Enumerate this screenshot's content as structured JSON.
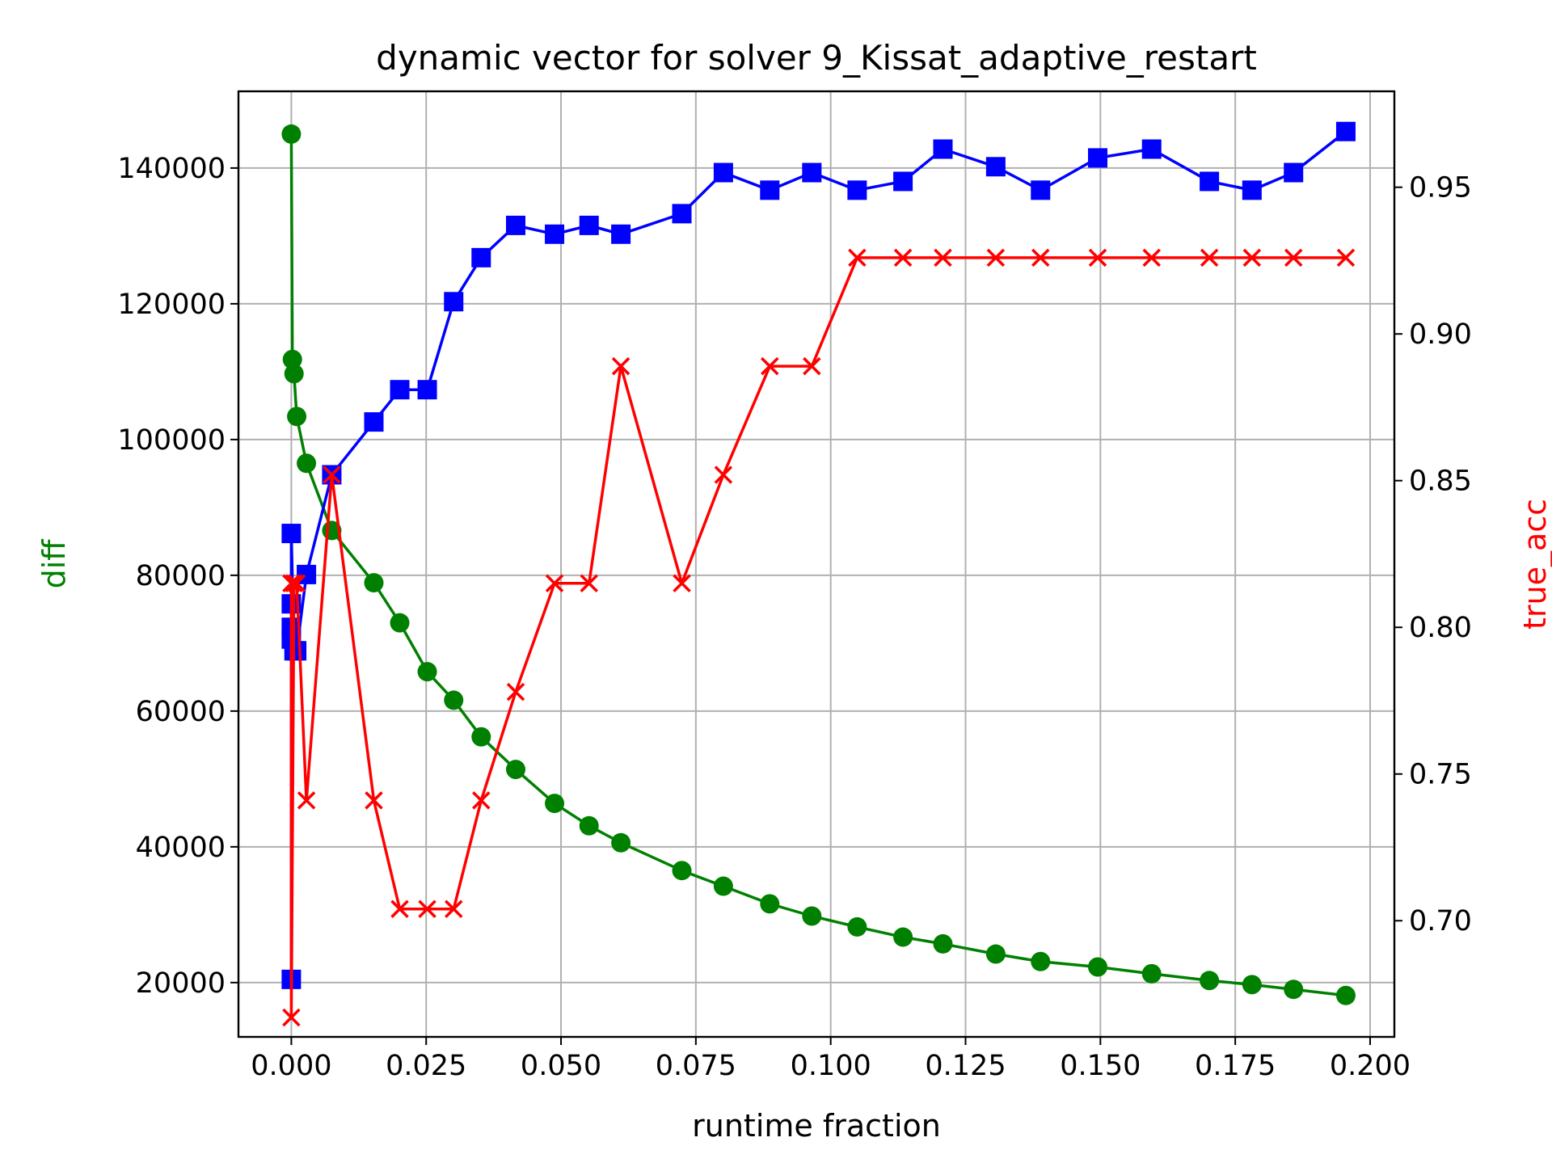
{
  "chart_data": {
    "type": "line",
    "title": "dynamic vector for solver 9_Kissat_adaptive_restart",
    "xlabel": "runtime fraction",
    "ylabel_left": "diff",
    "ylabel_right": "true_acc",
    "xlim": [
      -0.0098,
      0.2045
    ],
    "ylim_left": [
      12000,
      151300
    ],
    "ylim_right": [
      0.6604,
      0.9827
    ],
    "grid": true,
    "x_ticks": [
      "0.000",
      "0.025",
      "0.050",
      "0.075",
      "0.100",
      "0.125",
      "0.150",
      "0.175",
      "0.200"
    ],
    "y_ticks_left": [
      "20000",
      "40000",
      "60000",
      "80000",
      "100000",
      "120000",
      "140000"
    ],
    "y_ticks_right": [
      "0.70",
      "0.75",
      "0.80",
      "0.85",
      "0.90",
      "0.95"
    ],
    "colors": {
      "diff": "#008000",
      "blue": "#0000ff",
      "true_acc": "#ff0000",
      "grid": "#b0b0b0"
    },
    "series": [
      {
        "axis": "left",
        "marker": "circle",
        "color": "#008000",
        "x": [
          0.0,
          0.0002,
          0.0005,
          0.001,
          0.0028,
          0.0075,
          0.0153,
          0.0201,
          0.0252,
          0.0301,
          0.0352,
          0.0416,
          0.0488,
          0.0552,
          0.0611,
          0.0724,
          0.0801,
          0.0887,
          0.0965,
          0.1049,
          0.1134,
          0.1208,
          0.1306,
          0.1389,
          0.1495,
          0.1595,
          0.1702,
          0.1781,
          0.1858,
          0.1955
        ],
        "y": [
          145000,
          111800,
          109700,
          103400,
          96500,
          86600,
          78900,
          73000,
          65800,
          61600,
          56200,
          51400,
          46400,
          43100,
          40600,
          36500,
          34200,
          31600,
          29800,
          28200,
          26700,
          25700,
          24200,
          23100,
          22300,
          21300,
          20300,
          19700,
          19000,
          18100
        ]
      },
      {
        "axis": "right",
        "marker": "square",
        "color": "#0000ff",
        "x": [
          0.0,
          0.0,
          0.0,
          0.0,
          0.0,
          0.0005,
          0.001,
          0.0028,
          0.0075,
          0.0153,
          0.0201,
          0.0252,
          0.0301,
          0.0352,
          0.0416,
          0.0488,
          0.0552,
          0.0611,
          0.0724,
          0.0801,
          0.0887,
          0.0965,
          0.1049,
          0.1134,
          0.1208,
          0.1306,
          0.1389,
          0.1495,
          0.1595,
          0.1702,
          0.1781,
          0.1858,
          0.1955
        ],
        "y": [
          0.68,
          0.808,
          0.8,
          0.796,
          0.832,
          0.792,
          0.792,
          0.818,
          0.852,
          0.87,
          0.881,
          0.881,
          0.911,
          0.926,
          0.937,
          0.934,
          0.937,
          0.934,
          0.941,
          0.955,
          0.949,
          0.955,
          0.949,
          0.952,
          0.963,
          0.957,
          0.949,
          0.96,
          0.963,
          0.952,
          0.949,
          0.955,
          0.969
        ]
      },
      {
        "axis": "right",
        "marker": "x",
        "color": "#ff0000",
        "x": [
          0.0,
          0.0,
          0.0005,
          0.001,
          0.0028,
          0.0075,
          0.0153,
          0.0201,
          0.0252,
          0.0301,
          0.0352,
          0.0416,
          0.0488,
          0.0552,
          0.0611,
          0.0724,
          0.0801,
          0.0887,
          0.0965,
          0.1049,
          0.1134,
          0.1208,
          0.1306,
          0.1389,
          0.1495,
          0.1595,
          0.1702,
          0.1781,
          0.1858,
          0.1955
        ],
        "y": [
          0.815,
          0.667,
          0.815,
          0.815,
          0.741,
          0.852,
          0.741,
          0.704,
          0.704,
          0.704,
          0.741,
          0.778,
          0.815,
          0.815,
          0.889,
          0.815,
          0.852,
          0.889,
          0.889,
          0.926,
          0.926,
          0.926,
          0.926,
          0.926,
          0.926,
          0.926,
          0.926,
          0.926,
          0.926,
          0.926
        ]
      }
    ]
  }
}
